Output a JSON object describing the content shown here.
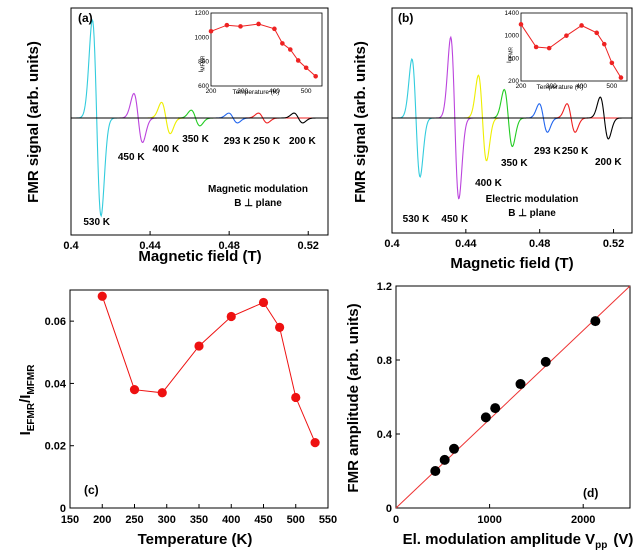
{
  "chart_data": [
    {
      "panel": "(a)",
      "type": "line",
      "xlabel": "Magnetic field (T)",
      "ylabel": "FMR signal (arb. units)",
      "xlim": [
        0.4,
        0.53
      ],
      "xticks": [
        "0.4",
        "0.44",
        "0.48",
        "0.52"
      ],
      "annotation_lines": [
        "Magnetic modulation",
        "B ⊥ plane"
      ],
      "series": [
        {
          "name": "530 K",
          "color": "#33ccdd",
          "center": 0.413,
          "amp": 1.0
        },
        {
          "name": "450 K",
          "color": "#bb44dd",
          "center": 0.434,
          "amp": 0.25
        },
        {
          "name": "400 K",
          "color": "#eeee00",
          "center": 0.448,
          "amp": 0.16
        },
        {
          "name": "350 K",
          "color": "#22cc22",
          "center": 0.463,
          "amp": 0.08
        },
        {
          "name": "293 K",
          "color": "#2266ee",
          "center": 0.482,
          "amp": 0.05
        },
        {
          "name": "250 K",
          "color": "#ee2222",
          "center": 0.497,
          "amp": 0.05
        },
        {
          "name": "200 K",
          "color": "#000000",
          "center": 0.515,
          "amp": 0.05
        }
      ],
      "inset": {
        "xlabel": "Temperature (K)",
        "ylabel": "I_MFMR (arb. units)",
        "xlim": [
          200,
          550
        ],
        "ylim": [
          600,
          1200
        ],
        "xticks": [
          "200",
          "300",
          "400",
          "500"
        ],
        "yticks": [
          "600",
          "800",
          "1000",
          "1200"
        ],
        "x": [
          200,
          250,
          293,
          350,
          400,
          425,
          450,
          475,
          500,
          530
        ],
        "y": [
          1050,
          1100,
          1090,
          1110,
          1070,
          950,
          900,
          810,
          750,
          680
        ]
      }
    },
    {
      "panel": "(b)",
      "type": "line",
      "xlabel": "Magnetic field (T)",
      "ylabel": "FMR signal (arb. units)",
      "xlim": [
        0.4,
        0.53
      ],
      "xticks": [
        "0.4",
        "0.44",
        "0.48",
        "0.52"
      ],
      "annotation_lines": [
        "Electric modulation",
        "B ⊥ plane"
      ],
      "series": [
        {
          "name": "530 K",
          "color": "#33ccdd",
          "center": 0.413,
          "amp": 0.62
        },
        {
          "name": "450 K",
          "color": "#bb44dd",
          "center": 0.434,
          "amp": 0.85
        },
        {
          "name": "400 K",
          "color": "#eeee00",
          "center": 0.449,
          "amp": 0.45
        },
        {
          "name": "350 K",
          "color": "#22cc22",
          "center": 0.463,
          "amp": 0.3
        },
        {
          "name": "293 K",
          "color": "#2266ee",
          "center": 0.482,
          "amp": 0.15
        },
        {
          "name": "250 K",
          "color": "#ee2222",
          "center": 0.497,
          "amp": 0.15
        },
        {
          "name": "200 K",
          "color": "#000000",
          "center": 0.515,
          "amp": 0.22
        }
      ],
      "inset": {
        "xlabel": "Temperature (K)",
        "ylabel": "I_EFMR (arb. units)",
        "xlim": [
          200,
          550
        ],
        "ylim": [
          200,
          1400
        ],
        "xticks": [
          "200",
          "300",
          "400",
          "500"
        ],
        "yticks": [
          "200",
          "600",
          "1000",
          "1400"
        ],
        "x": [
          200,
          250,
          293,
          350,
          400,
          450,
          475,
          500,
          530
        ],
        "y": [
          1200,
          800,
          780,
          1000,
          1180,
          1050,
          850,
          520,
          260
        ]
      }
    },
    {
      "panel": "(c)",
      "type": "line",
      "xlabel": "Temperature (K)",
      "ylabel": "I_EFMR / I_MFMR",
      "xlim": [
        150,
        550
      ],
      "ylim": [
        0,
        0.07
      ],
      "xticks": [
        150,
        200,
        250,
        300,
        350,
        400,
        450,
        500,
        550
      ],
      "yticks": [
        0,
        0.02,
        0.04,
        0.06
      ],
      "ytick_labels": [
        "0",
        "0.02",
        "0.04",
        "0.06"
      ],
      "x": [
        200,
        250,
        293,
        350,
        400,
        450,
        475,
        500,
        530
      ],
      "y": [
        0.068,
        0.038,
        0.037,
        0.052,
        0.0615,
        0.066,
        0.058,
        0.0355,
        0.021
      ],
      "color": "#ee1111"
    },
    {
      "panel": "(d)",
      "type": "scatter",
      "xlabel": "El. modulation amplitude V_pp (V)",
      "ylabel": "FMR amplitude (arb. units)",
      "xlim": [
        0,
        2500
      ],
      "ylim": [
        0,
        1.2
      ],
      "xticks": [
        0,
        1000,
        2000
      ],
      "yticks": [
        0,
        0.4,
        0.8,
        1.2
      ],
      "ytick_labels": [
        "0",
        "0.4",
        "0.8",
        "1.2"
      ],
      "x": [
        420,
        520,
        620,
        960,
        1060,
        1330,
        1600,
        2130
      ],
      "y": [
        0.2,
        0.26,
        0.32,
        0.49,
        0.54,
        0.67,
        0.79,
        1.01
      ],
      "fit": {
        "x": [
          0,
          2500
        ],
        "y": [
          0,
          1.2
        ]
      },
      "color": "#ee3333"
    }
  ],
  "labels": {
    "a": {
      "panel": "(a)",
      "xlabel": "Magnetic field (T)",
      "ylabel": "FMR signal (arb. units)",
      "ann1": "Magnetic modulation",
      "ann2": "B ⊥ plane",
      "inset_xlabel": "Temperature (K)",
      "inset_ylabel_main": "I",
      "inset_ylabel_sub": "MFMR",
      "inset_ylabel_rest": "(arb. units)"
    },
    "b": {
      "panel": "(b)",
      "xlabel": "Magnetic field (T)",
      "ylabel": "FMR signal (arb. units)",
      "ann1": "Electric modulation",
      "ann2": "B ⊥ plane",
      "inset_xlabel": "Temperature (K)",
      "inset_ylabel_main": "I",
      "inset_ylabel_sub": "EFMR",
      "inset_ylabel_rest": "(arb. units)"
    },
    "c": {
      "panel": "(c)",
      "xlabel": "Temperature (K)",
      "ylabel_i1": "I",
      "ylabel_sub1": "EFMR",
      "ylabel_slash": "/I",
      "ylabel_sub2": "MFMR"
    },
    "d": {
      "panel": "(d)",
      "ylabel": "FMR amplitude (arb. units)",
      "xlabel_main": "El. modulation amplitude V",
      "xlabel_sub": "pp",
      "xlabel_unit": "(V)"
    }
  }
}
